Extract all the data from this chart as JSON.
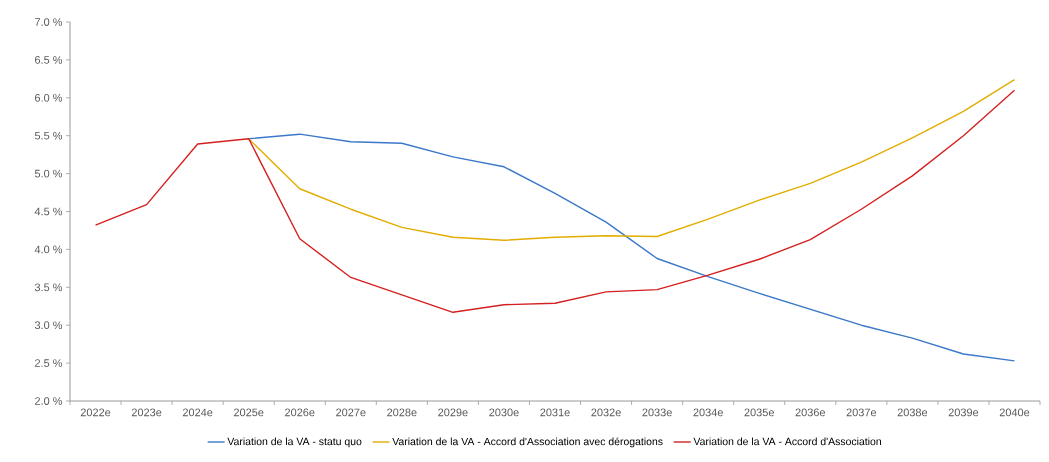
{
  "chart_data": {
    "type": "line",
    "categories": [
      "2022e",
      "2023e",
      "2024e",
      "2025e",
      "2026e",
      "2027e",
      "2028e",
      "2029e",
      "2030e",
      "2031e",
      "2032e",
      "2033e",
      "2034e",
      "2035e",
      "2036e",
      "2037e",
      "2038e",
      "2039e",
      "2040e"
    ],
    "series": [
      {
        "name": "Variation de la VA - statu quo",
        "color": "#3a78c9",
        "values": [
          null,
          null,
          null,
          5.46,
          5.52,
          5.42,
          5.4,
          5.22,
          5.09,
          4.74,
          4.36,
          3.88,
          3.64,
          3.42,
          3.21,
          3.0,
          2.83,
          2.62,
          2.53
        ]
      },
      {
        "name": "Variation de la VA - Accord d'Association avec dérogations",
        "color": "#e2ac00",
        "values": [
          null,
          null,
          null,
          5.46,
          4.8,
          4.53,
          4.29,
          4.16,
          4.12,
          4.16,
          4.18,
          4.17,
          4.4,
          4.65,
          4.87,
          5.15,
          5.47,
          5.82,
          6.24
        ]
      },
      {
        "name": "Variation de la VA - Accord d'Association",
        "color": "#d42020",
        "values": [
          4.32,
          4.59,
          5.39,
          5.46,
          4.14,
          3.63,
          3.4,
          3.17,
          3.27,
          3.29,
          3.44,
          3.47,
          3.66,
          3.87,
          4.13,
          4.53,
          4.97,
          5.5,
          6.1
        ]
      }
    ],
    "ylim": [
      2.0,
      7.0
    ],
    "yticks": [
      {
        "value": 2.0,
        "label": "2.0 %"
      },
      {
        "value": 2.5,
        "label": "2.5 %"
      },
      {
        "value": 3.0,
        "label": "3.0 %"
      },
      {
        "value": 3.5,
        "label": "3.5 %"
      },
      {
        "value": 4.0,
        "label": "4.0 %"
      },
      {
        "value": 4.5,
        "label": "4.5 %"
      },
      {
        "value": 5.0,
        "label": "5.0 %"
      },
      {
        "value": 5.5,
        "label": "5.5 %"
      },
      {
        "value": 6.0,
        "label": "6.0 %"
      },
      {
        "value": 6.5,
        "label": "6.5 %"
      },
      {
        "value": 7.0,
        "label": "7.0 %"
      }
    ],
    "grid": false,
    "legend": "bottom",
    "marker": "none",
    "line_style": "solid"
  }
}
